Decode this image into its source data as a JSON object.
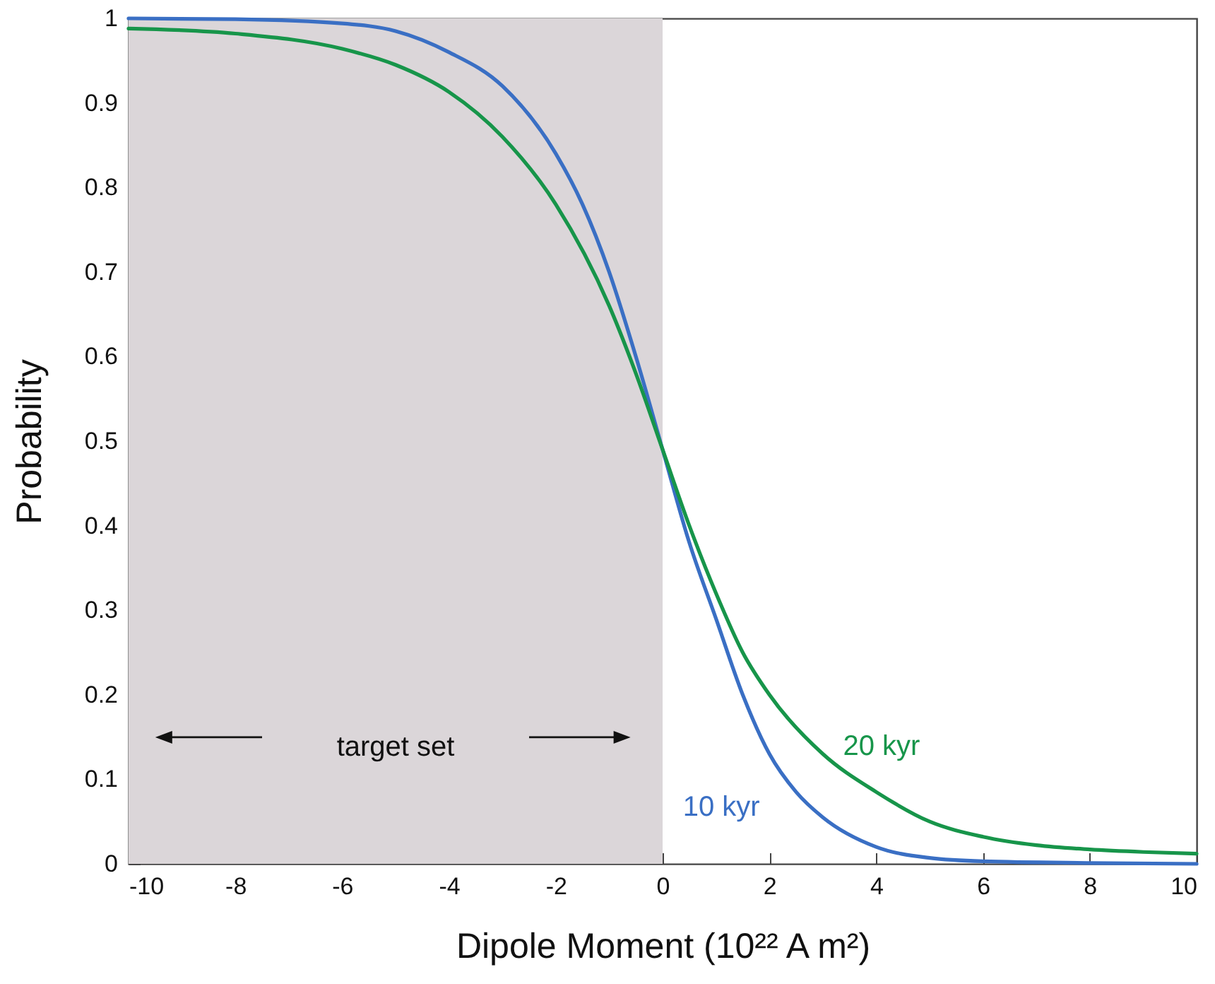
{
  "chart_data": {
    "type": "line",
    "xlabel": "Dipole Moment  (10²² A m²)",
    "ylabel": "Probability",
    "xlim": [
      -10,
      10
    ],
    "ylim": [
      0,
      1
    ],
    "xticks": [
      -10,
      -8,
      -6,
      -4,
      -2,
      0,
      2,
      4,
      6,
      8,
      10
    ],
    "yticks": [
      0,
      0.1,
      0.2,
      0.3,
      0.4,
      0.5,
      0.6,
      0.7,
      0.8,
      0.9,
      1
    ],
    "grid": false,
    "bands": [
      {
        "axis": "x",
        "from": -10,
        "to": 0,
        "label": "target set",
        "color": "#dbd6d9"
      }
    ],
    "series": [
      {
        "name": "10 kyr",
        "color": "#3a6fc4",
        "x": [
          -10,
          -8,
          -6,
          -5,
          -4,
          -3,
          -2,
          -1.5,
          -1,
          -0.5,
          0,
          0.5,
          1,
          1.5,
          2,
          2.5,
          3,
          4,
          5,
          6,
          8,
          10
        ],
        "values": [
          1.0,
          0.999,
          0.994,
          0.985,
          0.96,
          0.92,
          0.84,
          0.78,
          0.7,
          0.6,
          0.49,
          0.38,
          0.29,
          0.2,
          0.13,
          0.085,
          0.055,
          0.02,
          0.007,
          0.003,
          0.001,
          0
        ]
      },
      {
        "name": "20 kyr",
        "color": "#17954a",
        "x": [
          -10,
          -8,
          -6,
          -5,
          -4,
          -3,
          -2,
          -1,
          -0.5,
          0,
          0.5,
          1,
          1.5,
          2,
          3,
          4,
          5,
          6,
          7,
          8,
          9,
          10
        ],
        "values": [
          0.988,
          0.982,
          0.964,
          0.945,
          0.913,
          0.86,
          0.78,
          0.66,
          0.58,
          0.49,
          0.4,
          0.32,
          0.25,
          0.2,
          0.13,
          0.085,
          0.05,
          0.032,
          0.022,
          0.017,
          0.014,
          0.012
        ]
      }
    ]
  }
}
